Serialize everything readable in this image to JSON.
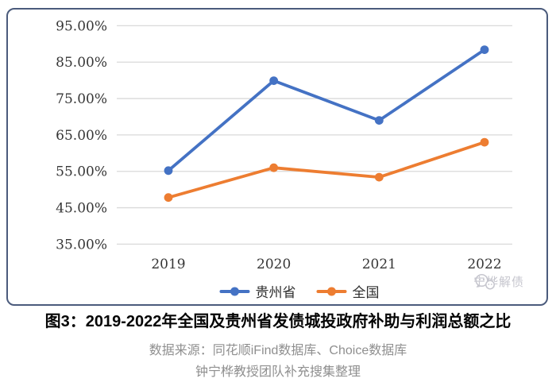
{
  "chart_data": {
    "type": "line",
    "title": "图3：2019-2022年全国及贵州省发债城投政府补助与利润总额之比",
    "categories": [
      "2019",
      "2020",
      "2021",
      "2022"
    ],
    "series": [
      {
        "name": "贵州省",
        "color": "#4472C4",
        "values": [
          55.2,
          79.9,
          69.0,
          88.4
        ]
      },
      {
        "name": "全国",
        "color": "#ED7D31",
        "values": [
          47.8,
          56.0,
          53.4,
          63.0
        ]
      }
    ],
    "ylim": [
      35,
      95
    ],
    "yticks": [
      {
        "value": 95,
        "label": "95.00%"
      },
      {
        "value": 85,
        "label": "85.00%"
      },
      {
        "value": 75,
        "label": "75.00%"
      },
      {
        "value": 65,
        "label": "65.00%"
      },
      {
        "value": 55,
        "label": "55.00%"
      },
      {
        "value": 45,
        "label": "45.00%"
      },
      {
        "value": 35,
        "label": "35.00%"
      }
    ],
    "grid": true,
    "legend_position": "bottom"
  },
  "caption": {
    "source_line1": "数据来源：同花顺iFind数据库、Choice数据库",
    "source_line2": "钟宁桦教授团队补充搜集整理"
  },
  "watermark": {
    "label": "宁桦解债",
    "icon": "wechat-chat-bubbles-icon"
  },
  "colors": {
    "frame_border": "#4b5b7c",
    "gridline": "#d9d9d9",
    "axis_text": "#363636",
    "source_text": "#8f8f8f",
    "watermark": "#c6c6ce"
  }
}
